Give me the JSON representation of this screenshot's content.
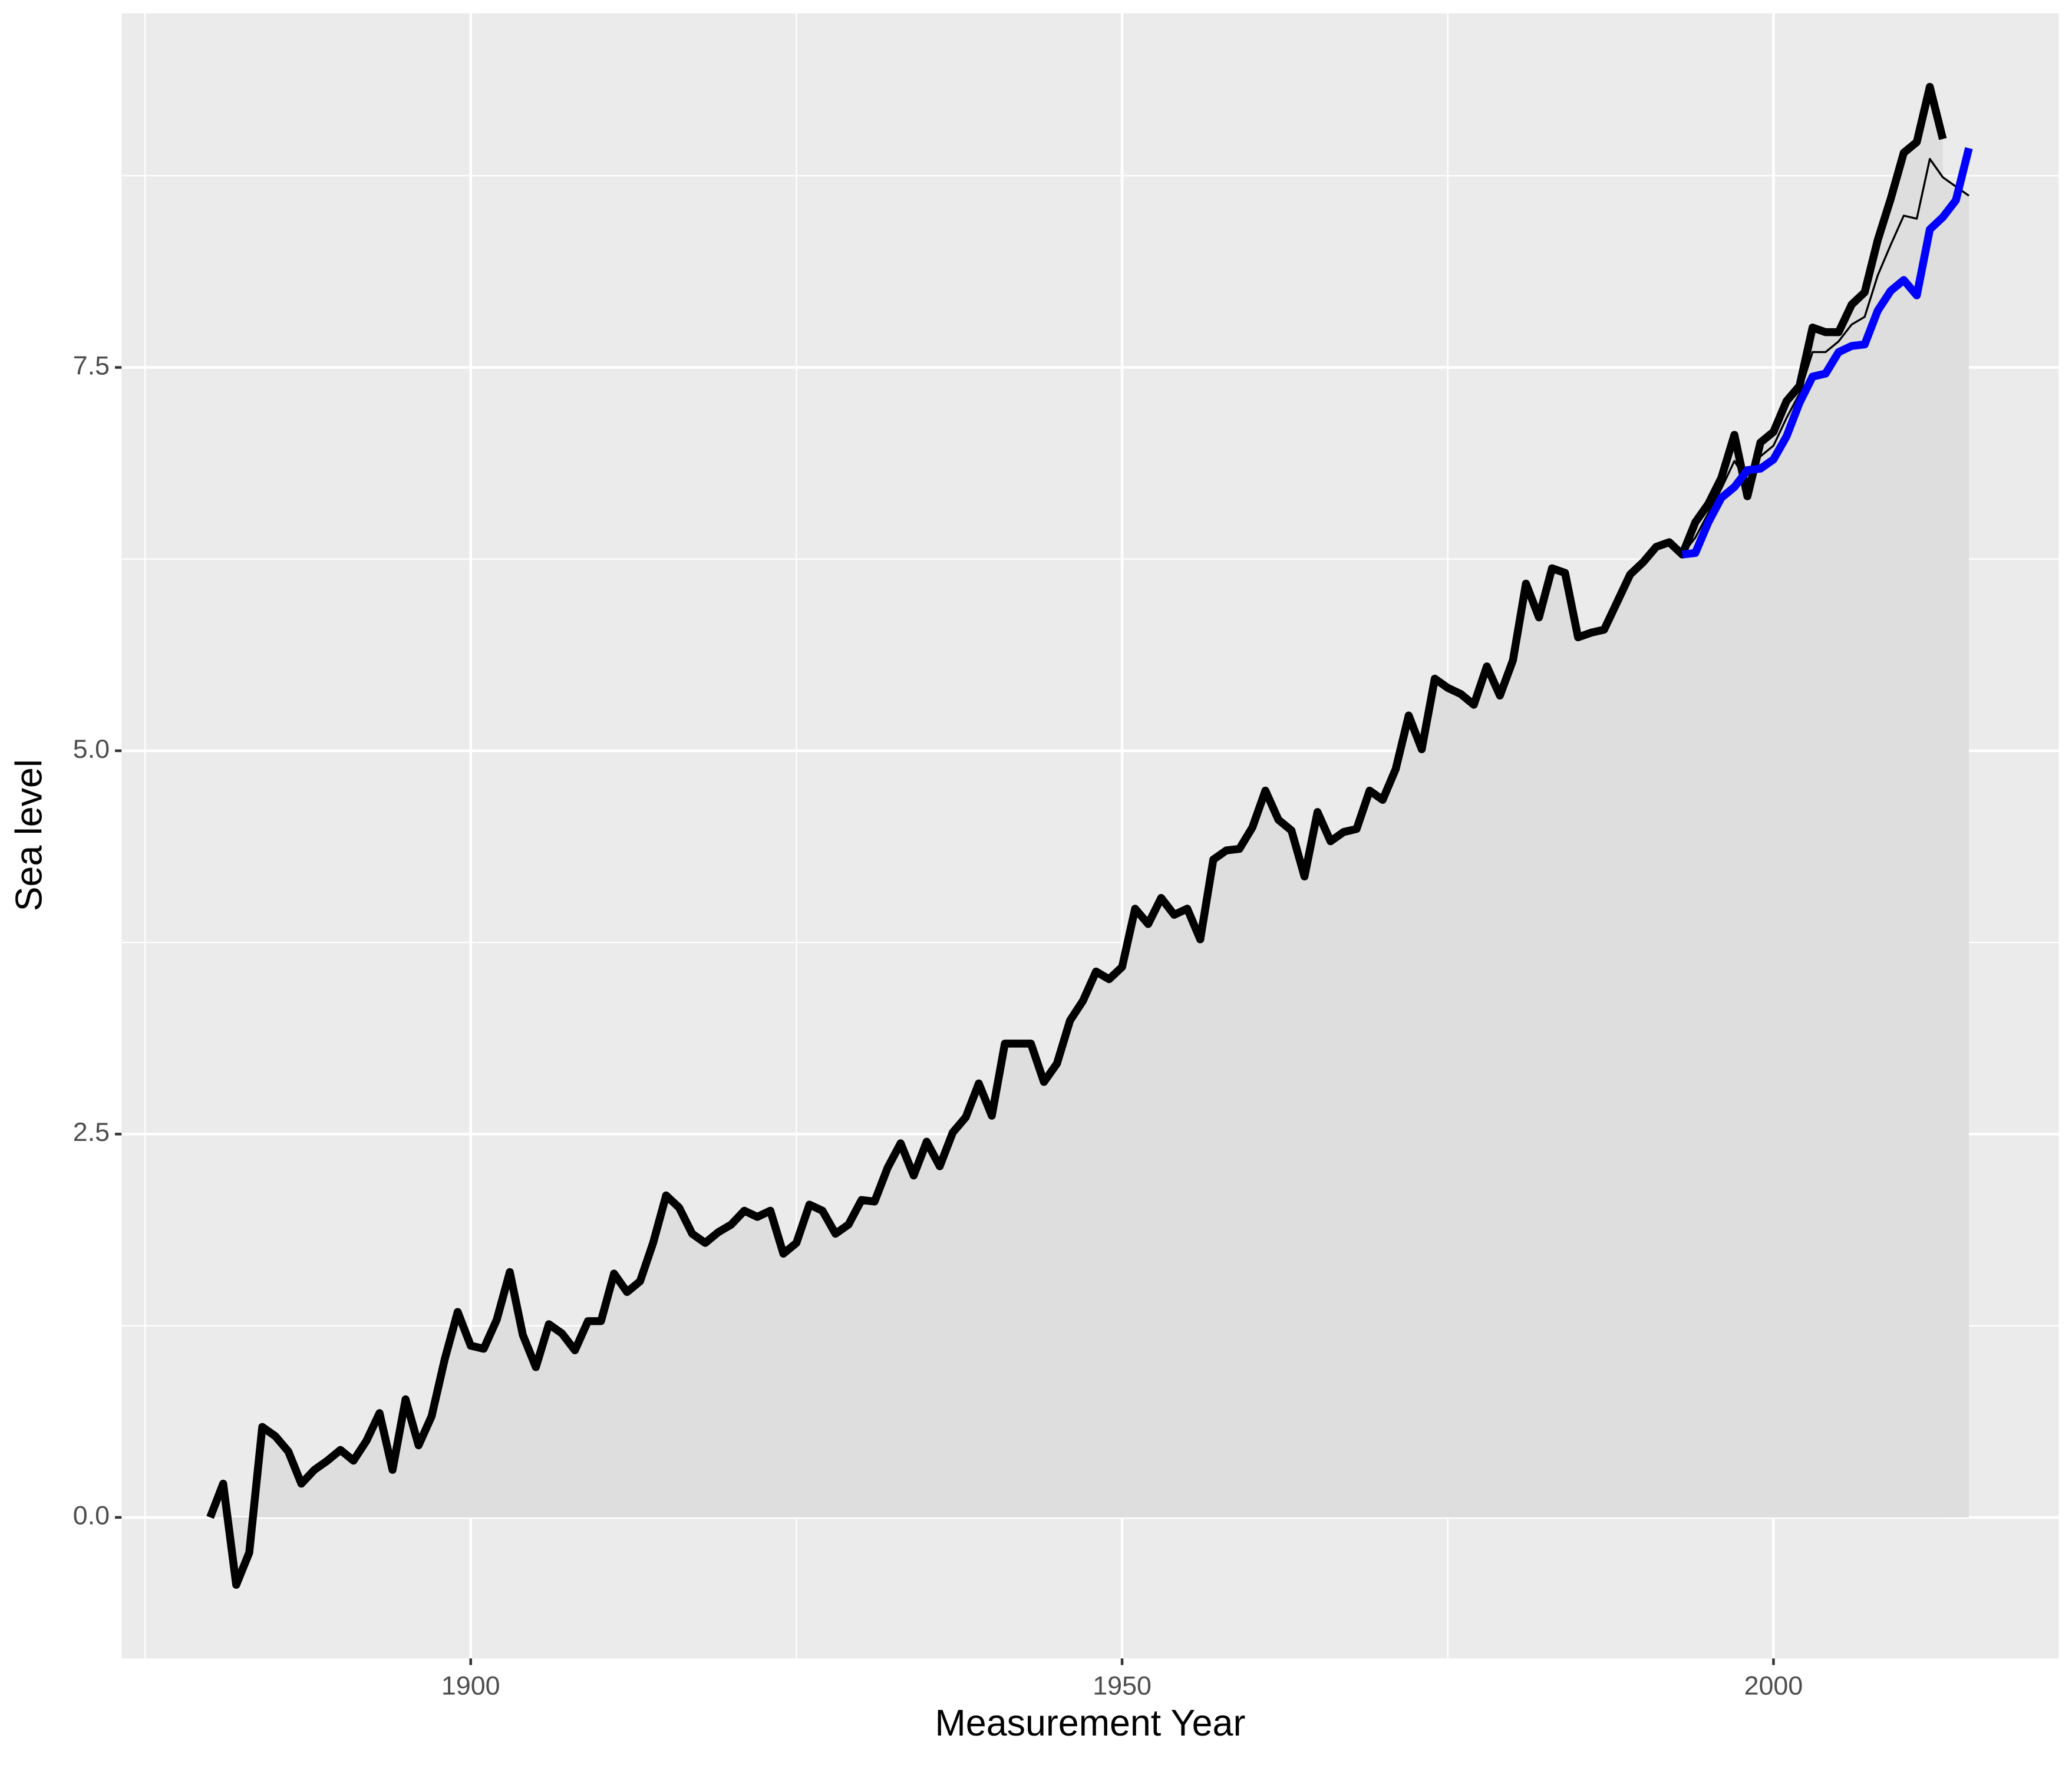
{
  "chart_data": {
    "type": "line",
    "xlabel": "Measurement Year",
    "ylabel": "Sea level",
    "xlim": [
      1873.2,
      2021.9
    ],
    "ylim": [
      -0.92,
      9.81
    ],
    "xticks": [
      1900,
      1950,
      2000
    ],
    "yticks": [
      {
        "value": 0,
        "label": "0.0"
      },
      2.5,
      {
        "value": 5,
        "label": "5.0"
      },
      7.5
    ],
    "minor_xticks": [
      1875,
      1925,
      1975
    ],
    "minor_yticks": [
      1.25,
      3.75,
      6.25,
      8.75
    ],
    "grid": true,
    "panel_color": "#ebebeb",
    "grid_color": "#ffffff",
    "fill_color": "#dedede",
    "series": [
      {
        "color": "#000000",
        "width": 6,
        "fill": true,
        "x": [
          1880,
          1881,
          1882,
          1883,
          1884,
          1885,
          1886,
          1887,
          1888,
          1889,
          1890,
          1891,
          1892,
          1893,
          1894,
          1895,
          1896,
          1897,
          1898,
          1899,
          1900,
          1901,
          1902,
          1903,
          1904,
          1905,
          1906,
          1907,
          1908,
          1909,
          1910,
          1911,
          1912,
          1913,
          1914,
          1915,
          1916,
          1917,
          1918,
          1919,
          1920,
          1921,
          1922,
          1923,
          1924,
          1925,
          1926,
          1927,
          1928,
          1929,
          1930,
          1931,
          1932,
          1933,
          1934,
          1935,
          1936,
          1937,
          1938,
          1939,
          1940,
          1941,
          1942,
          1943,
          1944,
          1945,
          1946,
          1947,
          1948,
          1949,
          1950,
          1951,
          1952,
          1953,
          1954,
          1955,
          1956,
          1957,
          1958,
          1959,
          1960,
          1961,
          1962,
          1963,
          1964,
          1965,
          1966,
          1967,
          1968,
          1969,
          1970,
          1971,
          1972,
          1973,
          1974,
          1975,
          1976,
          1977,
          1978,
          1979,
          1980,
          1981,
          1982,
          1983,
          1984,
          1985,
          1986,
          1987,
          1988,
          1989,
          1990,
          1991,
          1992,
          1993,
          1994,
          1995,
          1996,
          1997,
          1998,
          1999,
          2000,
          2001,
          2002,
          2003,
          2004,
          2005,
          2006,
          2007,
          2008,
          2009,
          2010,
          2011,
          2012,
          2013
        ],
        "values": [
          0,
          0.22,
          -0.44,
          -0.23,
          0.59,
          0.53,
          0.43,
          0.22,
          0.31,
          0.37,
          0.44,
          0.37,
          0.5,
          0.68,
          0.31,
          0.77,
          0.47,
          0.66,
          1.03,
          1.34,
          1.12,
          1.1,
          1.29,
          1.6,
          1.19,
          0.98,
          1.26,
          1.2,
          1.09,
          1.28,
          1.28,
          1.59,
          1.47,
          1.54,
          1.79,
          2.1,
          2.02,
          1.85,
          1.79,
          1.86,
          1.91,
          2,
          1.96,
          2,
          1.72,
          1.79,
          2.04,
          2,
          1.85,
          1.91,
          2.07,
          2.06,
          2.28,
          2.44,
          2.23,
          2.45,
          2.29,
          2.51,
          2.61,
          2.83,
          2.62,
          3.09,
          3.09,
          3.09,
          2.84,
          2.96,
          3.24,
          3.37,
          3.56,
          3.51,
          3.59,
          3.97,
          3.87,
          4.04,
          3.93,
          3.97,
          3.77,
          4.29,
          4.35,
          4.36,
          4.5,
          4.74,
          4.55,
          4.48,
          4.18,
          4.6,
          4.41,
          4.47,
          4.49,
          4.74,
          4.68,
          4.88,
          5.23,
          5.01,
          5.47,
          5.41,
          5.37,
          5.3,
          5.55,
          5.36,
          5.59,
          6.09,
          5.87,
          6.19,
          6.16,
          5.74,
          5.77,
          5.79,
          5.97,
          6.15,
          6.23,
          6.33,
          6.36,
          6.28,
          6.49,
          6.61,
          6.78,
          7.06,
          6.66,
          7.01,
          7.08,
          7.28,
          7.38,
          7.76,
          7.73,
          7.73,
          7.91,
          7.99,
          8.33,
          8.6,
          8.9,
          8.97,
          9.33,
          8.99
        ]
      },
      {
        "color": "#000000",
        "width": 1.5,
        "fill": true,
        "x": [
          1993,
          1994,
          1995,
          1996,
          1997,
          1998,
          1999,
          2000,
          2001,
          2002,
          2003,
          2004,
          2005,
          2006,
          2007,
          2008,
          2009,
          2010,
          2011,
          2012,
          2013,
          2014,
          2015
        ],
        "values": [
          6.28,
          6.39,
          6.55,
          6.71,
          6.89,
          6.75,
          6.92,
          6.99,
          7.17,
          7.33,
          7.6,
          7.6,
          7.67,
          7.78,
          7.83,
          8.1,
          8.3,
          8.49,
          8.47,
          8.86,
          8.74,
          8.68,
          8.62
        ]
      },
      {
        "color": "#0000ff",
        "width": 6,
        "fill": false,
        "x": [
          1993,
          1994,
          1995,
          1996,
          1997,
          1998,
          1999,
          2000,
          2001,
          2002,
          2003,
          2004,
          2005,
          2006,
          2007,
          2008,
          2009,
          2010,
          2011,
          2012,
          2013,
          2014,
          2015
        ],
        "values": [
          6.28,
          6.29,
          6.49,
          6.65,
          6.72,
          6.83,
          6.84,
          6.9,
          7.05,
          7.27,
          7.44,
          7.46,
          7.6,
          7.64,
          7.65,
          7.87,
          8,
          8.07,
          7.97,
          8.4,
          8.48,
          8.59,
          8.93
        ]
      }
    ]
  }
}
